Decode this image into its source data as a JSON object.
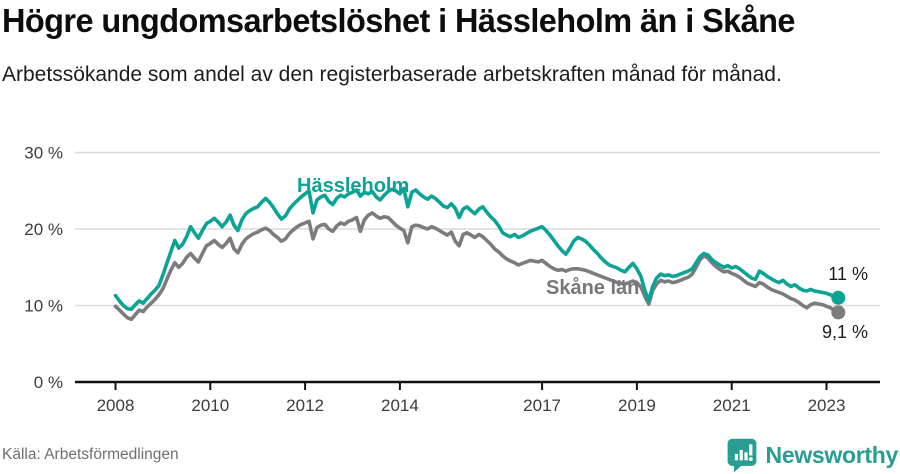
{
  "header": {
    "title": "Högre ungdomsarbetslöshet i Hässleholm än i Skåne",
    "subtitle": "Arbetssökande som andel av den registerbaserade arbetskraften månad för månad."
  },
  "footer": {
    "source": "Källa: Arbetsförmedlingen",
    "brand": "Newsworthy",
    "brand_color": "#289d92"
  },
  "chart_data": {
    "type": "line",
    "title": "Högre ungdomsarbetslöshet i Hässleholm än i Skåne",
    "subtitle": "Arbetssökande som andel av den registerbaserade arbetskraften månad för månad.",
    "x_interval": "month",
    "x_start": "2008-01",
    "x_end": "2023-04",
    "ylim": [
      0,
      30
    ],
    "grid": "horizontal",
    "legend_position": "inline-labels",
    "y_ticks": [
      {
        "value": 30,
        "label": "30 %"
      },
      {
        "value": 20,
        "label": "20 %"
      },
      {
        "value": 10,
        "label": "10 %"
      },
      {
        "value": 0,
        "label": "0 %"
      }
    ],
    "x_ticks": [
      {
        "value": 2008,
        "label": "2008"
      },
      {
        "value": 2010,
        "label": "2010"
      },
      {
        "value": 2012,
        "label": "2012"
      },
      {
        "value": 2014,
        "label": "2014"
      },
      {
        "value": 2017,
        "label": "2017"
      },
      {
        "value": 2019,
        "label": "2019"
      },
      {
        "value": 2021,
        "label": "2021"
      },
      {
        "value": 2023,
        "label": "2023"
      }
    ],
    "series": [
      {
        "name": "Hässleholm",
        "color": "#0aa396",
        "end_label": "11 %",
        "end_value": 11.0,
        "values": [
          11.3,
          10.6,
          10.0,
          9.6,
          9.5,
          10.1,
          10.6,
          10.3,
          10.9,
          11.5,
          12.0,
          12.6,
          14.0,
          15.5,
          17.0,
          18.5,
          17.5,
          18.0,
          19.0,
          20.3,
          19.5,
          18.8,
          19.8,
          20.7,
          21.0,
          21.4,
          20.9,
          20.3,
          20.9,
          21.8,
          20.5,
          19.8,
          21.2,
          22.0,
          22.4,
          22.7,
          22.9,
          23.5,
          24.0,
          23.5,
          22.8,
          22.0,
          21.3,
          21.7,
          22.6,
          23.2,
          23.7,
          24.2,
          24.6,
          25.0,
          22.1,
          23.8,
          24.2,
          24.4,
          23.6,
          23.2,
          24.0,
          24.4,
          24.2,
          24.6,
          24.8,
          25.1,
          24.3,
          24.8,
          24.6,
          24.9,
          24.2,
          23.8,
          24.4,
          24.9,
          25.2,
          25.0,
          24.6,
          25.3,
          22.9,
          24.8,
          25.1,
          24.6,
          24.2,
          23.9,
          24.3,
          24.0,
          23.5,
          23.0,
          22.8,
          23.3,
          22.7,
          21.5,
          22.6,
          22.9,
          22.4,
          22.0,
          22.6,
          22.9,
          22.2,
          21.6,
          21.1,
          20.4,
          19.5,
          19.2,
          19.0,
          19.3,
          18.9,
          19.1,
          19.4,
          19.7,
          19.9,
          20.1,
          20.3,
          19.8,
          19.2,
          18.5,
          17.8,
          17.2,
          16.7,
          17.5,
          18.4,
          18.9,
          18.7,
          18.4,
          17.9,
          17.3,
          16.8,
          16.2,
          15.7,
          15.3,
          15.1,
          14.9,
          14.6,
          14.4,
          15.0,
          15.5,
          14.8,
          13.8,
          12.0,
          10.6,
          12.5,
          13.6,
          14.1,
          13.9,
          14.0,
          13.8,
          13.9,
          14.1,
          14.3,
          14.5,
          14.8,
          15.6,
          16.4,
          16.8,
          16.6,
          16.0,
          15.6,
          15.3,
          15.0,
          15.2,
          14.9,
          15.1,
          14.8,
          14.4,
          14.0,
          13.6,
          13.4,
          14.5,
          14.2,
          13.8,
          13.5,
          13.2,
          13.0,
          13.3,
          12.8,
          12.5,
          12.7,
          12.3,
          12.0,
          11.9,
          12.1,
          11.9,
          11.8,
          11.7,
          11.6,
          11.4,
          11.2,
          11.0
        ]
      },
      {
        "name": "Skåne län",
        "color": "#7c7c7f",
        "end_label": "9,1 %",
        "end_value": 9.1,
        "values": [
          9.9,
          9.4,
          8.9,
          8.4,
          8.2,
          8.8,
          9.4,
          9.2,
          9.8,
          10.3,
          10.8,
          11.4,
          12.2,
          13.4,
          14.6,
          15.6,
          15.0,
          15.5,
          16.3,
          16.8,
          16.2,
          15.7,
          16.8,
          17.8,
          18.1,
          18.5,
          18.0,
          17.6,
          18.1,
          18.8,
          17.4,
          16.9,
          18.0,
          18.7,
          19.1,
          19.4,
          19.6,
          19.9,
          20.1,
          19.8,
          19.3,
          18.9,
          18.4,
          18.7,
          19.4,
          19.9,
          20.3,
          20.6,
          20.8,
          21.0,
          18.7,
          20.2,
          20.5,
          20.6,
          20.0,
          19.7,
          20.4,
          20.8,
          20.6,
          21.0,
          21.2,
          21.5,
          19.7,
          21.2,
          21.8,
          22.1,
          21.7,
          21.4,
          21.6,
          21.5,
          21.0,
          20.5,
          20.1,
          19.8,
          18.2,
          20.3,
          20.5,
          20.4,
          20.2,
          20.0,
          20.3,
          20.1,
          19.8,
          19.5,
          19.2,
          19.6,
          18.4,
          17.8,
          19.3,
          19.5,
          19.2,
          18.9,
          19.3,
          19.0,
          18.5,
          18.0,
          17.4,
          17.0,
          16.5,
          16.1,
          15.8,
          15.6,
          15.3,
          15.5,
          15.7,
          15.9,
          15.8,
          15.7,
          15.9,
          15.5,
          15.1,
          14.8,
          14.6,
          14.7,
          14.5,
          14.7,
          14.8,
          14.8,
          14.7,
          14.6,
          14.4,
          14.2,
          14.0,
          13.8,
          13.6,
          13.4,
          13.2,
          13.0,
          12.9,
          12.8,
          13.0,
          13.2,
          13.0,
          12.4,
          11.2,
          10.2,
          12.0,
          12.8,
          13.3,
          13.1,
          13.2,
          13.0,
          13.1,
          13.3,
          13.5,
          13.7,
          14.1,
          15.0,
          16.0,
          16.5,
          16.2,
          15.6,
          15.1,
          14.7,
          14.4,
          14.5,
          14.2,
          14.0,
          13.7,
          13.3,
          12.9,
          12.7,
          12.5,
          13.0,
          12.8,
          12.4,
          12.1,
          11.9,
          11.7,
          11.5,
          11.2,
          10.9,
          10.7,
          10.4,
          10.0,
          9.7,
          10.1,
          10.3,
          10.2,
          10.1,
          9.9,
          9.7,
          9.4,
          9.1
        ]
      }
    ]
  }
}
